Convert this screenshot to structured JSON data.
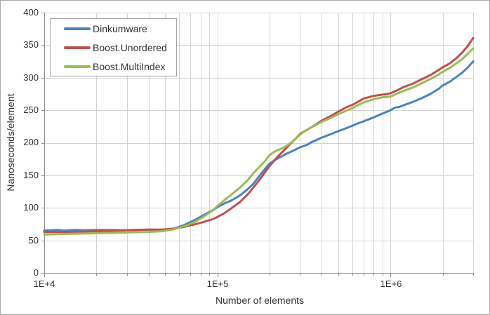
{
  "chart_data": {
    "type": "line",
    "title": "",
    "xlabel": "Number of elements",
    "ylabel": "Nanoseconds/element",
    "x_scale": "log",
    "x_range": [
      10000,
      3000000
    ],
    "y_range": [
      0,
      400
    ],
    "y_tick_step": 50,
    "x_tick_labels": [
      "1E+4",
      "1E+5",
      "1E+6"
    ],
    "y_tick_labels": [
      "400",
      "350",
      "300",
      "250",
      "200",
      "150",
      "100",
      "50",
      "0"
    ],
    "grid": true,
    "legend_position": "top-left-inside",
    "colors": {
      "grid": "#d4d4d4",
      "axis": "#8f8f8f",
      "border": "#ababab",
      "background": "#ffffff"
    },
    "series": [
      {
        "name": "Dinkumware",
        "color": "#4F81BD",
        "points": [
          [
            10000,
            65
          ],
          [
            12000,
            66
          ],
          [
            13000,
            65
          ],
          [
            15000,
            66
          ],
          [
            17000,
            65.5
          ],
          [
            20000,
            66
          ],
          [
            24000,
            66
          ],
          [
            28000,
            65.5
          ],
          [
            34000,
            66
          ],
          [
            40000,
            66.5
          ],
          [
            48000,
            66
          ],
          [
            56000,
            68
          ],
          [
            65000,
            74
          ],
          [
            75000,
            82
          ],
          [
            85000,
            90
          ],
          [
            95000,
            97
          ],
          [
            100000,
            101
          ],
          [
            110000,
            107
          ],
          [
            120000,
            111
          ],
          [
            135000,
            119
          ],
          [
            150000,
            129
          ],
          [
            160000,
            136
          ],
          [
            175000,
            149
          ],
          [
            190000,
            161
          ],
          [
            200000,
            168
          ],
          [
            220000,
            175
          ],
          [
            250000,
            183
          ],
          [
            275000,
            188
          ],
          [
            300000,
            193
          ],
          [
            330000,
            197
          ],
          [
            350000,
            201
          ],
          [
            400000,
            208
          ],
          [
            450000,
            213
          ],
          [
            500000,
            218
          ],
          [
            550000,
            222
          ],
          [
            600000,
            226
          ],
          [
            650000,
            230
          ],
          [
            700000,
            233
          ],
          [
            800000,
            239
          ],
          [
            900000,
            245
          ],
          [
            1000000,
            250
          ],
          [
            1060000,
            254
          ],
          [
            1120000,
            255
          ],
          [
            1200000,
            258
          ],
          [
            1350000,
            263
          ],
          [
            1500000,
            268
          ],
          [
            1700000,
            275
          ],
          [
            1900000,
            283
          ],
          [
            2000000,
            288
          ],
          [
            2200000,
            294
          ],
          [
            2400000,
            301
          ],
          [
            2600000,
            308
          ],
          [
            2800000,
            316
          ],
          [
            3000000,
            325
          ]
        ]
      },
      {
        "name": "Boost.Unordered",
        "color": "#C0504D",
        "points": [
          [
            10000,
            63
          ],
          [
            12000,
            63
          ],
          [
            14000,
            63
          ],
          [
            17000,
            63.5
          ],
          [
            20000,
            64
          ],
          [
            24000,
            64.5
          ],
          [
            28000,
            65.5
          ],
          [
            34000,
            66
          ],
          [
            40000,
            66.5
          ],
          [
            48000,
            66.5
          ],
          [
            56000,
            68
          ],
          [
            65000,
            71
          ],
          [
            75000,
            75
          ],
          [
            85000,
            79
          ],
          [
            95000,
            83
          ],
          [
            100000,
            86
          ],
          [
            110000,
            92
          ],
          [
            120000,
            99
          ],
          [
            135000,
            109
          ],
          [
            150000,
            121
          ],
          [
            160000,
            130
          ],
          [
            175000,
            143
          ],
          [
            190000,
            156
          ],
          [
            200000,
            164
          ],
          [
            220000,
            177
          ],
          [
            250000,
            192
          ],
          [
            275000,
            203
          ],
          [
            300000,
            213
          ],
          [
            330000,
            220
          ],
          [
            350000,
            224
          ],
          [
            400000,
            234
          ],
          [
            450000,
            241
          ],
          [
            500000,
            248
          ],
          [
            550000,
            254
          ],
          [
            600000,
            258
          ],
          [
            650000,
            263
          ],
          [
            700000,
            268
          ],
          [
            800000,
            272
          ],
          [
            900000,
            274
          ],
          [
            1000000,
            276
          ],
          [
            1100000,
            281
          ],
          [
            1200000,
            286
          ],
          [
            1350000,
            291
          ],
          [
            1500000,
            297
          ],
          [
            1700000,
            304
          ],
          [
            1900000,
            312
          ],
          [
            2000000,
            316
          ],
          [
            2200000,
            322
          ],
          [
            2400000,
            330
          ],
          [
            2600000,
            339
          ],
          [
            2800000,
            349
          ],
          [
            3000000,
            361
          ]
        ]
      },
      {
        "name": "Boost.MultiIndex",
        "color": "#9BBB59",
        "points": [
          [
            10000,
            59
          ],
          [
            12000,
            59.5
          ],
          [
            14000,
            60
          ],
          [
            17000,
            60.5
          ],
          [
            20000,
            61
          ],
          [
            24000,
            61.5
          ],
          [
            28000,
            62
          ],
          [
            34000,
            62.5
          ],
          [
            40000,
            63
          ],
          [
            48000,
            64
          ],
          [
            56000,
            67
          ],
          [
            65000,
            72
          ],
          [
            75000,
            79
          ],
          [
            85000,
            88
          ],
          [
            95000,
            97
          ],
          [
            100000,
            103
          ],
          [
            110000,
            112
          ],
          [
            120000,
            120
          ],
          [
            135000,
            131
          ],
          [
            150000,
            143
          ],
          [
            160000,
            152
          ],
          [
            175000,
            163
          ],
          [
            190000,
            173
          ],
          [
            200000,
            181
          ],
          [
            215000,
            187
          ],
          [
            240000,
            192
          ],
          [
            260000,
            198
          ],
          [
            280000,
            205
          ],
          [
            300000,
            214
          ],
          [
            330000,
            220
          ],
          [
            350000,
            224
          ],
          [
            400000,
            232
          ],
          [
            450000,
            238
          ],
          [
            500000,
            244
          ],
          [
            550000,
            249
          ],
          [
            600000,
            253
          ],
          [
            650000,
            258
          ],
          [
            700000,
            262
          ],
          [
            800000,
            267
          ],
          [
            900000,
            270
          ],
          [
            1000000,
            271
          ],
          [
            1100000,
            276
          ],
          [
            1200000,
            280
          ],
          [
            1350000,
            285
          ],
          [
            1500000,
            291
          ],
          [
            1700000,
            298
          ],
          [
            1900000,
            305
          ],
          [
            2000000,
            309
          ],
          [
            2200000,
            315
          ],
          [
            2400000,
            322
          ],
          [
            2600000,
            329
          ],
          [
            2800000,
            337
          ],
          [
            3000000,
            345
          ]
        ]
      }
    ]
  }
}
